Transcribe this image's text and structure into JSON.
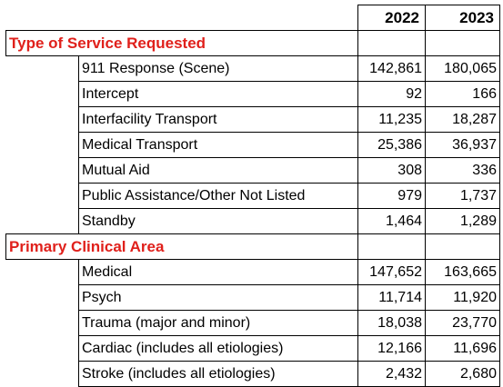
{
  "header": {
    "years": [
      "2022",
      "2023"
    ]
  },
  "colors": {
    "section_text": "#e0201b",
    "grid": "#000000"
  },
  "sections": [
    {
      "title": "Type of Service Requested",
      "rows": [
        {
          "label": "911 Response (Scene)",
          "v2022": "142,861",
          "v2023": "180,065"
        },
        {
          "label": "Intercept",
          "v2022": "92",
          "v2023": "166"
        },
        {
          "label": "Interfacility Transport",
          "v2022": "11,235",
          "v2023": "18,287"
        },
        {
          "label": "Medical Transport",
          "v2022": "25,386",
          "v2023": "36,937"
        },
        {
          "label": "Mutual Aid",
          "v2022": "308",
          "v2023": "336"
        },
        {
          "label": "Public Assistance/Other Not Listed",
          "v2022": "979",
          "v2023": "1,737"
        },
        {
          "label": "Standby",
          "v2022": "1,464",
          "v2023": "1,289"
        }
      ]
    },
    {
      "title": "Primary Clinical Area",
      "rows": [
        {
          "label": "Medical",
          "v2022": "147,652",
          "v2023": "163,665"
        },
        {
          "label": "Psych",
          "v2022": "11,714",
          "v2023": "11,920"
        },
        {
          "label": "Trauma (major and minor)",
          "v2022": "18,038",
          "v2023": "23,770"
        },
        {
          "label": "Cardiac (includes all etiologies)",
          "v2022": "12,166",
          "v2023": "11,696"
        },
        {
          "label": "Stroke (includes all etiologies)",
          "v2022": "2,432",
          "v2023": "2,680"
        }
      ]
    }
  ]
}
